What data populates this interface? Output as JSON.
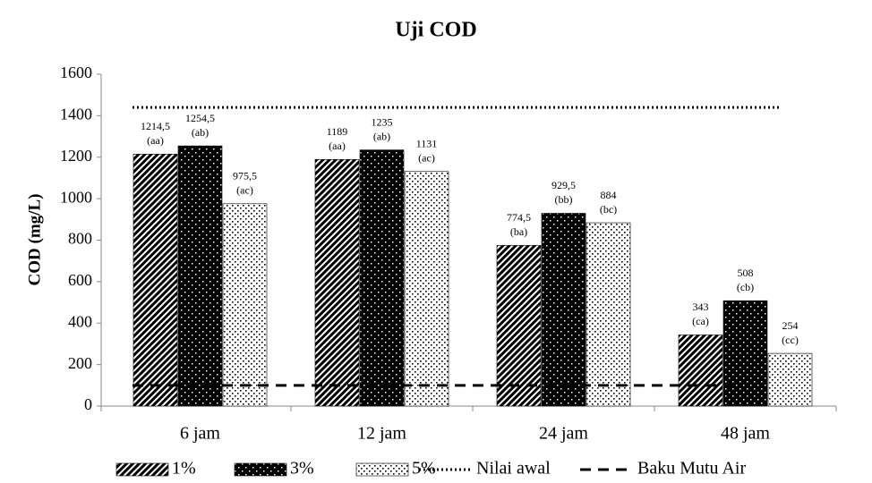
{
  "chart_data": {
    "type": "bar",
    "title": "Uji COD",
    "y_label": "COD (mg/L)",
    "categories": [
      "6 jam",
      "12 jam",
      "24 jam",
      "48 jam"
    ],
    "series": [
      {
        "name": "1%",
        "color": "#000000",
        "pattern": "diagonal",
        "values": [
          1214.5,
          1189,
          774.5,
          343
        ],
        "value_labels": [
          "1214,5",
          "1189",
          "774,5",
          "343"
        ],
        "notations": [
          "(aa)",
          "(aa)",
          "(ba)",
          "(ca)"
        ]
      },
      {
        "name": "3%",
        "color": "#000000",
        "pattern": "dark-dots",
        "values": [
          1254.5,
          1235,
          929.5,
          508
        ],
        "value_labels": [
          "1254,5",
          "1235",
          "929,5",
          "508"
        ],
        "notations": [
          "(ab)",
          "(ab)",
          "(bb)",
          "(cb)"
        ]
      },
      {
        "name": "5%",
        "color": "#000000",
        "pattern": "light-dots",
        "values": [
          975.5,
          1131,
          884,
          254
        ],
        "value_labels": [
          "975,5",
          "1131",
          "884",
          "254"
        ],
        "notations": [
          "(ac)",
          "(ac)",
          "(bc)",
          "(cc)"
        ]
      }
    ],
    "reference_lines": [
      {
        "name": "Nilai awal",
        "value": 1440,
        "style": "dotted",
        "color": "#000000"
      },
      {
        "name": "Baku Mutu Air",
        "value": 100,
        "style": "dashed",
        "color": "#000000"
      }
    ],
    "ylim": [
      0,
      1600
    ],
    "yticks": [
      0,
      200,
      400,
      600,
      800,
      1000,
      1200,
      1400,
      1600
    ],
    "legend": "bottom"
  }
}
